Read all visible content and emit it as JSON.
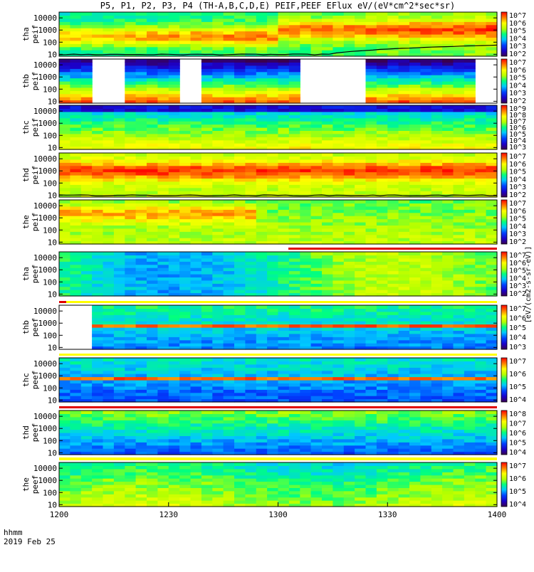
{
  "chart_data": {
    "type": "heatmap",
    "title": "P5, P1, P2, P3, P4 (TH-A,B,C,D,E) PEIF,PEEF EFlux eV/(eV*cm^2*sec*sr)",
    "x_tick_labels": [
      "1200",
      "1230",
      "1300",
      "1330",
      "1400"
    ],
    "x_tick_values_min": [
      0,
      30,
      60,
      90,
      120
    ],
    "x_range_min": [
      0,
      120
    ],
    "x_label_row1": "hhmm",
    "x_label_row2": "2019 Feb 25",
    "y_scale": "log",
    "y_range_eV": [
      7,
      30000
    ],
    "y_tick_labels": [
      "10",
      "100",
      "1000",
      "10000"
    ],
    "colorbar_scale": "log",
    "colorbar_unit": "eV/(cm^2-s-sr-eV)",
    "colorbar_unit_full": "[eV/(cm2-s-sr-eV)]",
    "panels": [
      {
        "label": "tha peif",
        "species": "ions",
        "probe": "A",
        "colorbar_ticks": [
          "10^7",
          "10^6",
          "10^5",
          "10^4",
          "10^3",
          "10^2"
        ],
        "data_gaps_min": [],
        "level_trace": true
      },
      {
        "label": "thb peif",
        "species": "ions",
        "probe": "B",
        "colorbar_ticks": [
          "10^7",
          "10^6",
          "10^5",
          "10^4",
          "10^3",
          "10^2"
        ],
        "data_gaps_min": [
          [
            9,
            19
          ],
          [
            32,
            40
          ],
          [
            65,
            83
          ],
          [
            113,
            120
          ]
        ],
        "level_trace": false
      },
      {
        "label": "thc peif",
        "species": "ions",
        "probe": "C",
        "colorbar_ticks": [
          "10^9",
          "10^8",
          "10^7",
          "10^6",
          "10^5",
          "10^4",
          "10^3"
        ],
        "data_gaps_min": [],
        "level_trace": false
      },
      {
        "label": "thd peif",
        "species": "ions",
        "probe": "D",
        "colorbar_ticks": [
          "10^7",
          "10^6",
          "10^5",
          "10^4",
          "10^3",
          "10^2"
        ],
        "data_gaps_min": [],
        "level_trace": true
      },
      {
        "label": "the peif",
        "species": "ions",
        "probe": "E",
        "colorbar_ticks": [
          "10^7",
          "10^6",
          "10^5",
          "10^4",
          "10^3",
          "10^2"
        ],
        "data_gaps_min": [],
        "level_trace": false
      },
      {
        "label": "tha peef",
        "species": "electrons",
        "probe": "A",
        "colorbar_ticks": [
          "10^7",
          "10^6",
          "10^5",
          "10^4",
          "10^3",
          "10^2"
        ],
        "data_gaps_min": [],
        "level_trace": false
      },
      {
        "label": "thb peef",
        "species": "electrons",
        "probe": "B",
        "colorbar_ticks": [
          "10^7",
          "10^6",
          "10^5",
          "10^4",
          "10^3"
        ],
        "data_gaps_min": [
          [
            0,
            9
          ]
        ],
        "level_trace": false
      },
      {
        "label": "thc peef",
        "species": "electrons",
        "probe": "C",
        "colorbar_ticks": [
          "10^7",
          "10^6",
          "10^5",
          "10^4"
        ],
        "data_gaps_min": [],
        "level_trace": false
      },
      {
        "label": "thd peef",
        "species": "electrons",
        "probe": "D",
        "colorbar_ticks": [
          "10^8",
          "10^7",
          "10^6",
          "10^5",
          "10^4"
        ],
        "data_gaps_min": [],
        "level_trace": false
      },
      {
        "label": "the peef",
        "species": "electrons",
        "probe": "E",
        "colorbar_ticks": [
          "10^7",
          "10^6",
          "10^5",
          "10^4"
        ],
        "data_gaps_min": [],
        "level_trace": false
      }
    ]
  }
}
